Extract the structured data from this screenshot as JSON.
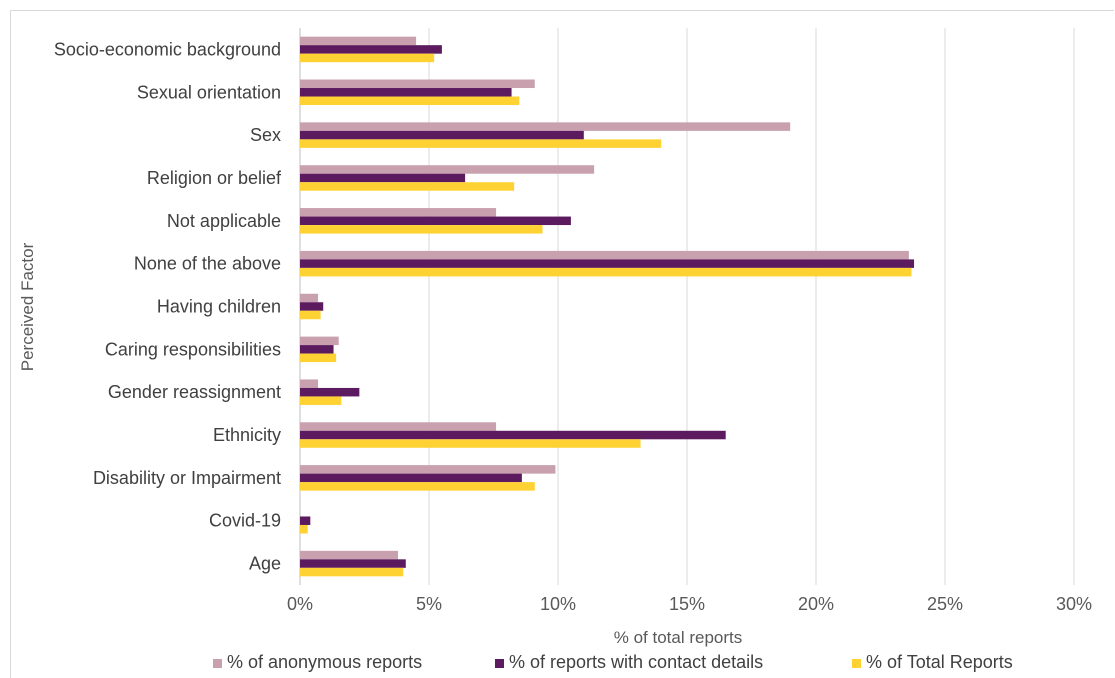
{
  "chart_data": {
    "type": "bar",
    "orientation": "horizontal",
    "categories": [
      "Socio-economic background",
      "Sexual orientation",
      "Sex",
      "Religion or belief",
      "Not applicable",
      "None of the above",
      "Having children",
      "Caring responsibilities",
      "Gender reassignment",
      "Ethnicity",
      "Disability or Impairment",
      "Covid-19",
      "Age"
    ],
    "series": [
      {
        "name": "% of anonymous reports",
        "color": "#c9a0ad",
        "values": [
          4.5,
          9.1,
          19.0,
          11.4,
          7.6,
          23.6,
          0.7,
          1.5,
          0.7,
          7.6,
          9.9,
          0.0,
          3.8
        ]
      },
      {
        "name": "% of reports with contact details",
        "color": "#5c1a5f",
        "values": [
          5.5,
          8.2,
          11.0,
          6.4,
          10.5,
          23.8,
          0.9,
          1.3,
          2.3,
          16.5,
          8.6,
          0.4,
          4.1
        ]
      },
      {
        "name": "% of Total Reports",
        "color": "#ffd233",
        "values": [
          5.2,
          8.5,
          14.0,
          8.3,
          9.4,
          23.7,
          0.8,
          1.4,
          1.6,
          13.2,
          9.1,
          0.3,
          4.0
        ]
      }
    ],
    "xlabel": "% of total reports",
    "ylabel": "Perceived Factor",
    "xlim": [
      0,
      30
    ],
    "xticks": [
      "0%",
      "5%",
      "10%",
      "15%",
      "20%",
      "25%",
      "30%"
    ],
    "grid": "vertical",
    "legend_position": "bottom"
  }
}
